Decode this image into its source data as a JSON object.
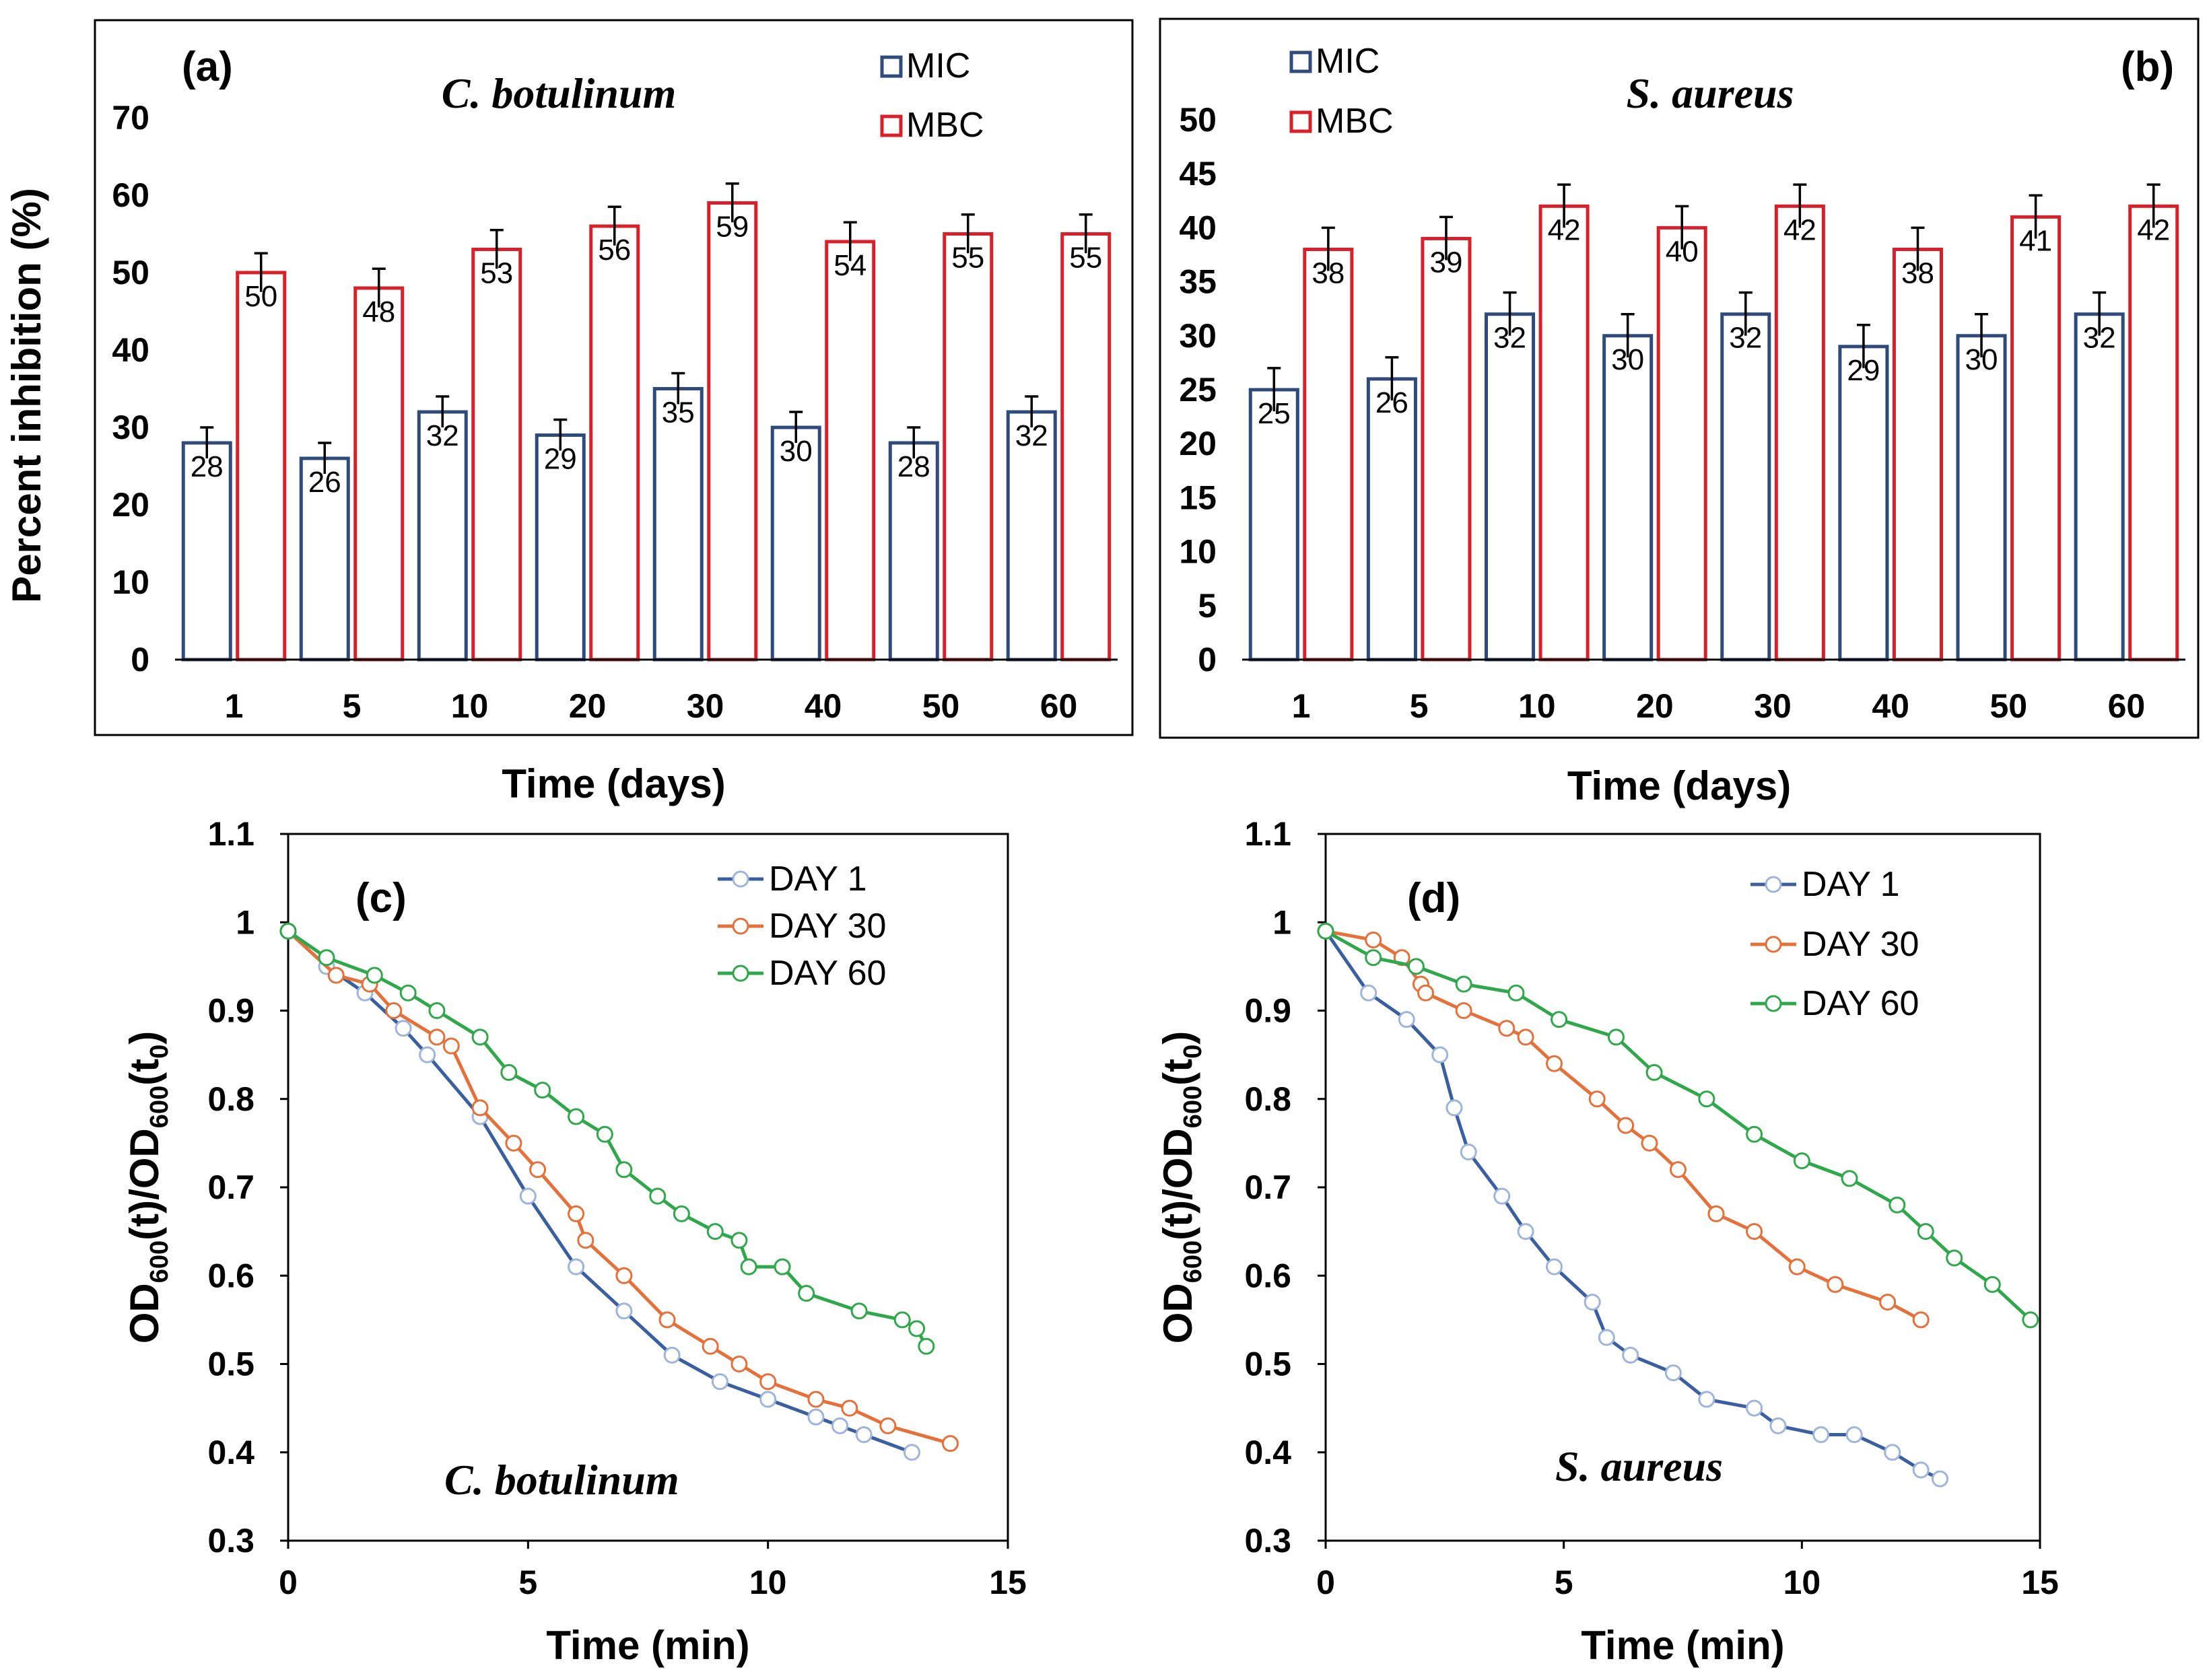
{
  "colors": {
    "mic": "#2f4b7c",
    "mbc": "#d9202a",
    "day1": "#3a5fa0",
    "day30": "#e5703a",
    "day60": "#2ea84a",
    "marker_ring": "#9db4dc",
    "axis": "#000000"
  },
  "chart_data": [
    {
      "id": "a",
      "type": "bar",
      "panel_label": "(a)",
      "title": "C. botulinum",
      "xlabel": "Time (days)",
      "ylabel": "Percent inhibition (%)",
      "categories": [
        "1",
        "5",
        "10",
        "20",
        "30",
        "40",
        "50",
        "60"
      ],
      "ylim": [
        0,
        70
      ],
      "yticks": [
        "0",
        "10",
        "20",
        "30",
        "40",
        "50",
        "60",
        "70"
      ],
      "legend_position": "top-right",
      "series": [
        {
          "name": "MIC",
          "values": [
            28,
            26,
            32,
            29,
            35,
            30,
            28,
            32
          ],
          "error": 2
        },
        {
          "name": "MBC",
          "values": [
            50,
            48,
            53,
            56,
            59,
            54,
            55,
            55
          ],
          "error": 2.5
        }
      ]
    },
    {
      "id": "b",
      "type": "bar",
      "panel_label": "(b)",
      "title": "S. aureus",
      "xlabel": "Time (days)",
      "ylabel": "",
      "categories": [
        "1",
        "5",
        "10",
        "20",
        "30",
        "40",
        "50",
        "60"
      ],
      "ylim": [
        0,
        50
      ],
      "yticks": [
        "0",
        "5",
        "10",
        "15",
        "20",
        "25",
        "30",
        "35",
        "40",
        "45",
        "50"
      ],
      "legend_position": "top-left",
      "series": [
        {
          "name": "MIC",
          "values": [
            25,
            26,
            32,
            30,
            32,
            29,
            30,
            32
          ],
          "error": 2
        },
        {
          "name": "MBC",
          "values": [
            38,
            39,
            42,
            40,
            42,
            38,
            41,
            42
          ],
          "error": 2
        }
      ]
    },
    {
      "id": "c",
      "type": "line",
      "panel_label": "(c)",
      "title": "C. botulinum",
      "xlabel": "Time (min)",
      "ylabel_main": "OD",
      "ylabel_sub": "600",
      "ylabel_t": "(t)/OD",
      "ylabel_t0": "(t",
      "ylabel_zero": "0",
      "ylabel_close": ")",
      "xlim": [
        0,
        15
      ],
      "ylim": [
        0.3,
        1.1
      ],
      "xticks": [
        "0",
        "5",
        "10",
        "15"
      ],
      "yticks": [
        "0.3",
        "0.4",
        "0.5",
        "0.6",
        "0.7",
        "0.8",
        "0.9",
        "1",
        "1.1"
      ],
      "legend_position": "top-right",
      "series": [
        {
          "name": "DAY 1",
          "x": [
            0,
            0.8,
            1.6,
            2.4,
            2.9,
            4.0,
            5.0,
            6.0,
            7.0,
            8.0,
            9.0,
            10.0,
            11.0,
            11.5,
            12.0,
            13.0
          ],
          "y": [
            0.99,
            0.95,
            0.92,
            0.88,
            0.85,
            0.78,
            0.69,
            0.61,
            0.56,
            0.51,
            0.48,
            0.46,
            0.44,
            0.43,
            0.42,
            0.4
          ]
        },
        {
          "name": "DAY 30",
          "x": [
            0,
            1.0,
            1.7,
            2.2,
            3.1,
            3.4,
            4.0,
            4.7,
            5.2,
            6.0,
            6.2,
            7.0,
            7.9,
            8.8,
            9.4,
            10.0,
            11.0,
            11.7,
            12.5,
            13.8
          ],
          "y": [
            0.99,
            0.94,
            0.93,
            0.9,
            0.87,
            0.86,
            0.79,
            0.75,
            0.72,
            0.67,
            0.64,
            0.6,
            0.55,
            0.52,
            0.5,
            0.48,
            0.46,
            0.45,
            0.43,
            0.41
          ]
        },
        {
          "name": "DAY 60",
          "x": [
            0,
            0.8,
            1.8,
            2.5,
            3.1,
            4.0,
            4.6,
            5.3,
            6.0,
            6.6,
            7.0,
            7.7,
            8.2,
            8.9,
            9.4,
            9.6,
            10.3,
            10.8,
            11.9,
            12.8,
            13.1,
            13.3
          ],
          "y": [
            0.99,
            0.96,
            0.94,
            0.92,
            0.9,
            0.87,
            0.83,
            0.81,
            0.78,
            0.76,
            0.72,
            0.69,
            0.67,
            0.65,
            0.64,
            0.61,
            0.61,
            0.58,
            0.56,
            0.55,
            0.54,
            0.52
          ]
        }
      ]
    },
    {
      "id": "d",
      "type": "line",
      "panel_label": "(d)",
      "title": "S. aureus",
      "xlabel": "Time (min)",
      "ylabel_main": "OD",
      "ylabel_sub": "600",
      "ylabel_t": "(t)/OD",
      "ylabel_t0": "(t",
      "ylabel_zero": "0",
      "ylabel_close": ")",
      "xlim": [
        0,
        15
      ],
      "ylim": [
        0.3,
        1.1
      ],
      "xticks": [
        "0",
        "5",
        "10",
        "15"
      ],
      "yticks": [
        "0.3",
        "0.4",
        "0.5",
        "0.6",
        "0.7",
        "0.8",
        "0.9",
        "1",
        "1.1"
      ],
      "legend_position": "top-right",
      "series": [
        {
          "name": "DAY 1",
          "x": [
            0,
            0.9,
            1.7,
            2.4,
            2.7,
            3.0,
            3.7,
            4.2,
            4.8,
            5.6,
            5.9,
            6.4,
            7.3,
            8.0,
            9.0,
            9.5,
            10.4,
            11.1,
            11.9,
            12.5,
            12.9
          ],
          "y": [
            0.99,
            0.92,
            0.89,
            0.85,
            0.79,
            0.74,
            0.69,
            0.65,
            0.61,
            0.57,
            0.53,
            0.51,
            0.49,
            0.46,
            0.45,
            0.43,
            0.42,
            0.42,
            0.4,
            0.38,
            0.37
          ]
        },
        {
          "name": "DAY 30",
          "x": [
            0,
            1.0,
            1.6,
            2.0,
            2.1,
            2.9,
            3.8,
            4.2,
            4.8,
            5.7,
            6.3,
            6.8,
            7.4,
            8.2,
            9.0,
            9.9,
            10.7,
            11.8,
            12.5
          ],
          "y": [
            0.99,
            0.98,
            0.96,
            0.93,
            0.92,
            0.9,
            0.88,
            0.87,
            0.84,
            0.8,
            0.77,
            0.75,
            0.72,
            0.67,
            0.65,
            0.61,
            0.59,
            0.57,
            0.55
          ]
        },
        {
          "name": "DAY 60",
          "x": [
            0,
            1.0,
            1.9,
            2.9,
            4.0,
            4.9,
            6.1,
            6.9,
            8.0,
            9.0,
            10.0,
            11.0,
            12.0,
            12.6,
            13.2,
            14.0,
            14.8
          ],
          "y": [
            0.99,
            0.96,
            0.95,
            0.93,
            0.92,
            0.89,
            0.87,
            0.83,
            0.8,
            0.76,
            0.73,
            0.71,
            0.68,
            0.65,
            0.62,
            0.59,
            0.55
          ]
        }
      ]
    }
  ]
}
